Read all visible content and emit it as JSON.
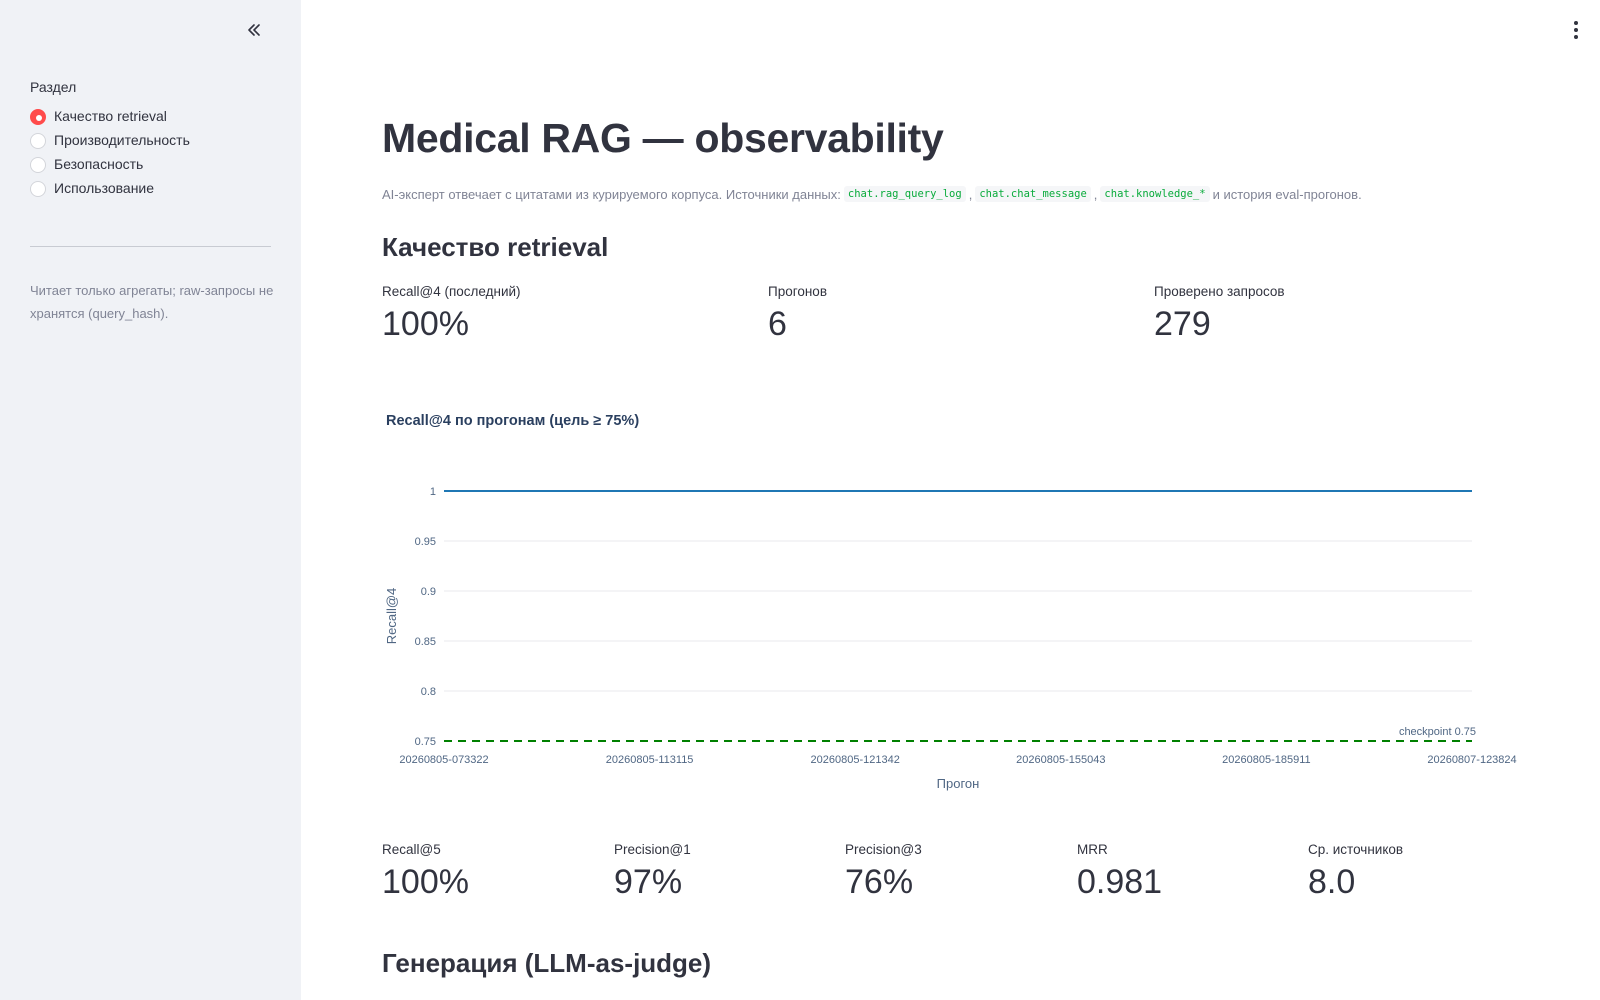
{
  "sidebar": {
    "collapse_icon": "chevron-double-left-icon",
    "section_label": "Раздел",
    "options": [
      {
        "label": "Качество retrieval",
        "selected": true
      },
      {
        "label": "Производительность",
        "selected": false
      },
      {
        "label": "Безопасность",
        "selected": false
      },
      {
        "label": "Использование",
        "selected": false
      }
    ],
    "caption": "Читает только агрегаты; raw-запросы не хранятся (query_hash)."
  },
  "header": {
    "menu_icon": "more-vertical-icon"
  },
  "main": {
    "title": "Medical RAG — observability",
    "subtitle": {
      "prefix": "AI-эксперт отвечает с цитатами из курируемого корпуса. Источники данных:",
      "code1": "chat.rag_query_log",
      "sep1": ",",
      "code2": "chat.chat_message",
      "sep2": ",",
      "code3": "chat.knowledge_*",
      "suffix": "и история eval-прогонов."
    },
    "section1_title": "Качество retrieval",
    "metrics_top": [
      {
        "label": "Recall@4 (последний)",
        "value": "100%"
      },
      {
        "label": "Прогонов",
        "value": "6"
      },
      {
        "label": "Проверено запросов",
        "value": "279"
      }
    ],
    "metrics_bottom": [
      {
        "label": "Recall@5",
        "value": "100%"
      },
      {
        "label": "Precision@1",
        "value": "97%"
      },
      {
        "label": "Precision@3",
        "value": "76%"
      },
      {
        "label": "MRR",
        "value": "0.981"
      },
      {
        "label": "Ср. источников",
        "value": "8.0"
      }
    ],
    "section2_title": "Генерация (LLM-as-judge)"
  },
  "chart_data": {
    "type": "line",
    "title": "Recall@4 по прогонам (цель ≥ 75%)",
    "xlabel": "Прогон",
    "ylabel": "Recall@4",
    "x": [
      "20260805-073322",
      "20260805-113115",
      "20260805-121342",
      "20260805-155043",
      "20260805-185911",
      "20260807-123824"
    ],
    "series": [
      {
        "values": [
          1,
          1,
          1,
          1,
          1,
          1
        ],
        "color": "#1f77b4"
      }
    ],
    "reference_line": {
      "value": 0.75,
      "label": "checkpoint 0.75",
      "color": "#008000",
      "style": "dashed"
    },
    "ylim": [
      0.75,
      1
    ],
    "yticks": [
      1,
      0.95,
      0.9,
      0.85,
      0.8,
      0.75
    ],
    "grid": true
  },
  "colors": {
    "accent": "#ff4b4b",
    "sidebar_bg": "#f0f2f6",
    "text": "#31333f",
    "muted": "#808495",
    "code": "#09ab3b"
  }
}
